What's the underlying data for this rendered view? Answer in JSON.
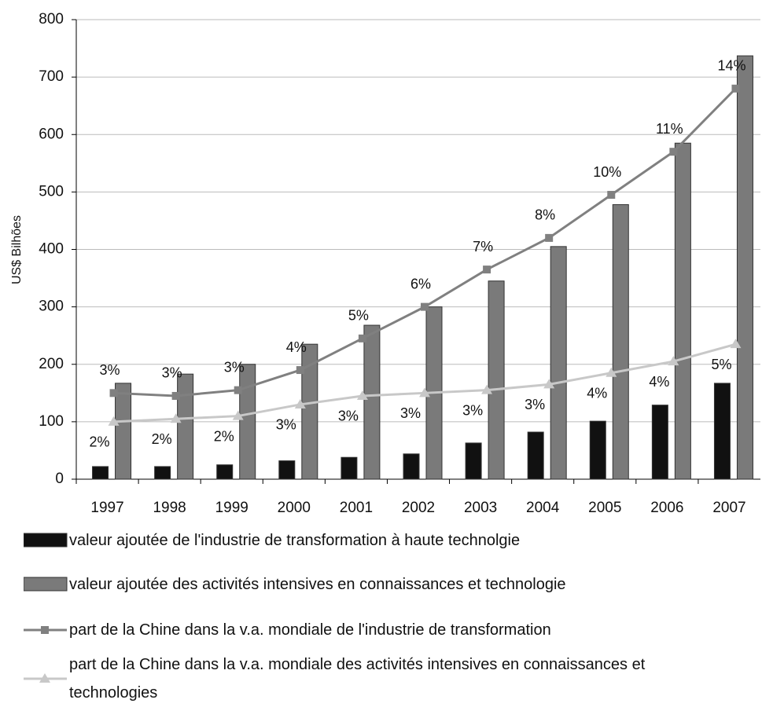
{
  "chart_data": {
    "type": "bar",
    "ylabel": "US$ Bilhões",
    "categories": [
      "1997",
      "1998",
      "1999",
      "2000",
      "2001",
      "2002",
      "2003",
      "2004",
      "2005",
      "2006",
      "2007"
    ],
    "series": [
      {
        "name": "valeur ajoutée de l'industrie de transformation à haute technolgie",
        "color": "#111111",
        "values": [
          22,
          22,
          25,
          32,
          38,
          44,
          63,
          82,
          101,
          129,
          167
        ]
      },
      {
        "name": "valeur ajoutée des activités intensives en connaissances et technologie",
        "color": "#7a7a7a",
        "values": [
          167,
          183,
          200,
          235,
          268,
          300,
          345,
          405,
          478,
          585,
          737
        ]
      },
      {
        "name": "part de la Chine dans la v.a. mondiale de l'industrie de transformation",
        "type": "line",
        "axis": "y2",
        "color": "#808080",
        "marker": "square",
        "values": [
          3.0,
          2.9,
          3.1,
          3.8,
          4.9,
          6.0,
          7.3,
          8.4,
          9.9,
          11.4,
          13.6
        ],
        "value_labels": [
          "3%",
          "3%",
          "3%",
          "4%",
          "5%",
          "6%",
          "7%",
          "8%",
          "10%",
          "11%",
          "14%"
        ]
      },
      {
        "name": "part de la Chine dans la v.a. mondiale des activités intensives en connaissances et technologies",
        "type": "line",
        "axis": "y2",
        "color": "#c8c8c8",
        "marker": "triangle",
        "values": [
          2.0,
          2.1,
          2.2,
          2.6,
          2.9,
          3.0,
          3.1,
          3.3,
          3.7,
          4.1,
          4.7
        ],
        "value_labels": [
          "2%",
          "2%",
          "2%",
          "3%",
          "3%",
          "3%",
          "3%",
          "3%",
          "4%",
          "4%",
          "5%"
        ]
      }
    ],
    "ylim": [
      0,
      800
    ],
    "yticks": [
      0,
      100,
      200,
      300,
      400,
      500,
      600,
      700,
      800
    ],
    "y2lim": [
      0,
      16
    ],
    "grid": true
  }
}
